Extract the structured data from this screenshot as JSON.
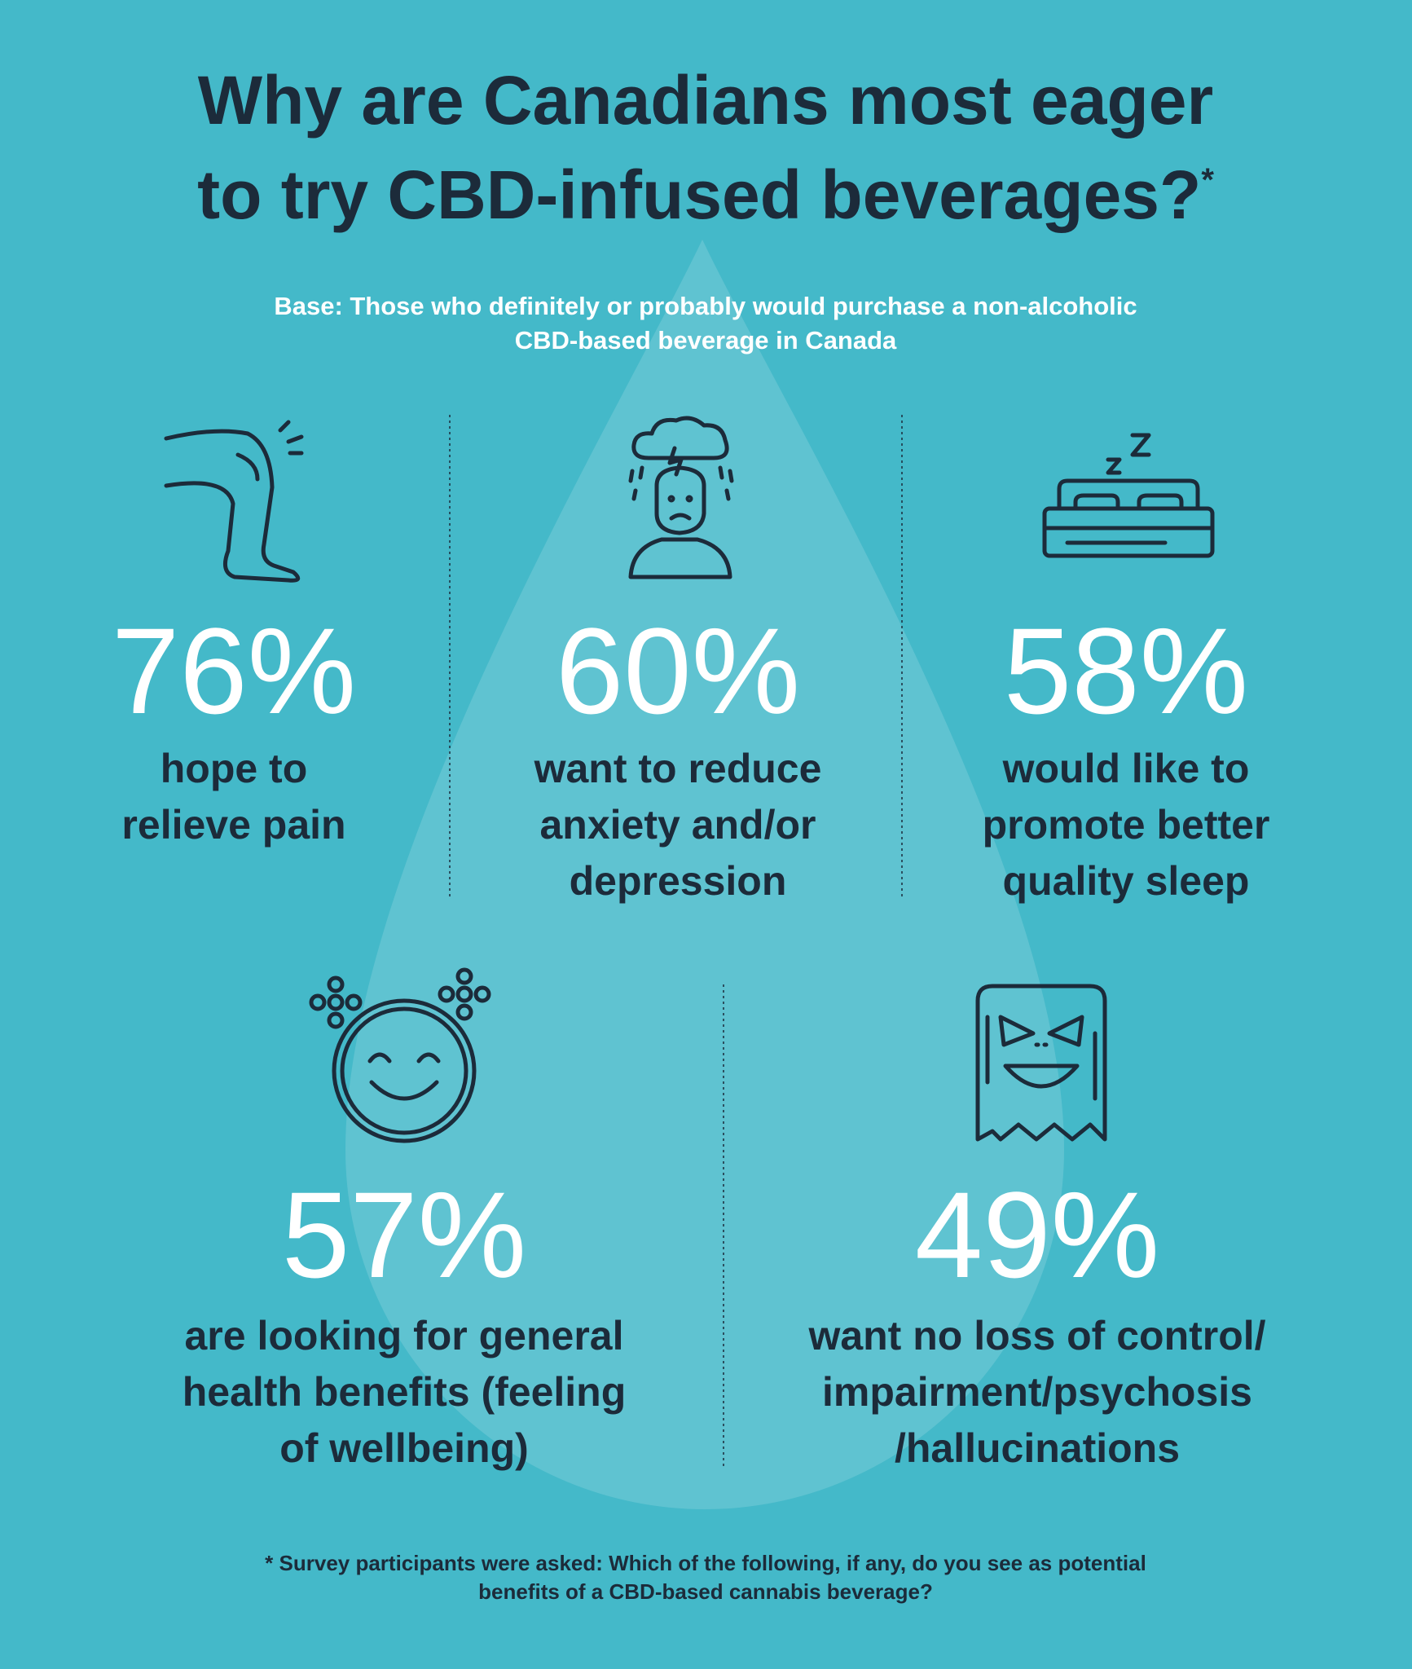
{
  "title_lines": [
    "Why are Canadians most eager",
    "to try CBD-infused beverages?"
  ],
  "title_mark": "*",
  "subtitle_lines": [
    "Base: Those who definitely or probably would purchase a non-alcoholic",
    "CBD-based beverage in Canada"
  ],
  "stats": [
    {
      "value": "76%",
      "label_lines": [
        "hope to",
        "relieve pain"
      ]
    },
    {
      "value": "60%",
      "label_lines": [
        "want to reduce",
        "anxiety and/or",
        "depression"
      ]
    },
    {
      "value": "58%",
      "label_lines": [
        "would like to",
        "promote better",
        "quality sleep"
      ]
    },
    {
      "value": "57%",
      "label_lines": [
        "are looking for general",
        "health benefits (feeling",
        "of wellbeing)"
      ]
    },
    {
      "value": "49%",
      "label_lines": [
        "want no loss of control/",
        "impairment/psychosis",
        "/hallucinations"
      ]
    }
  ],
  "footnote_lines": [
    "* Survey participants were asked: Which of the following, if any, do you see as potential",
    "benefits of a CBD-based cannabis beverage?"
  ]
}
